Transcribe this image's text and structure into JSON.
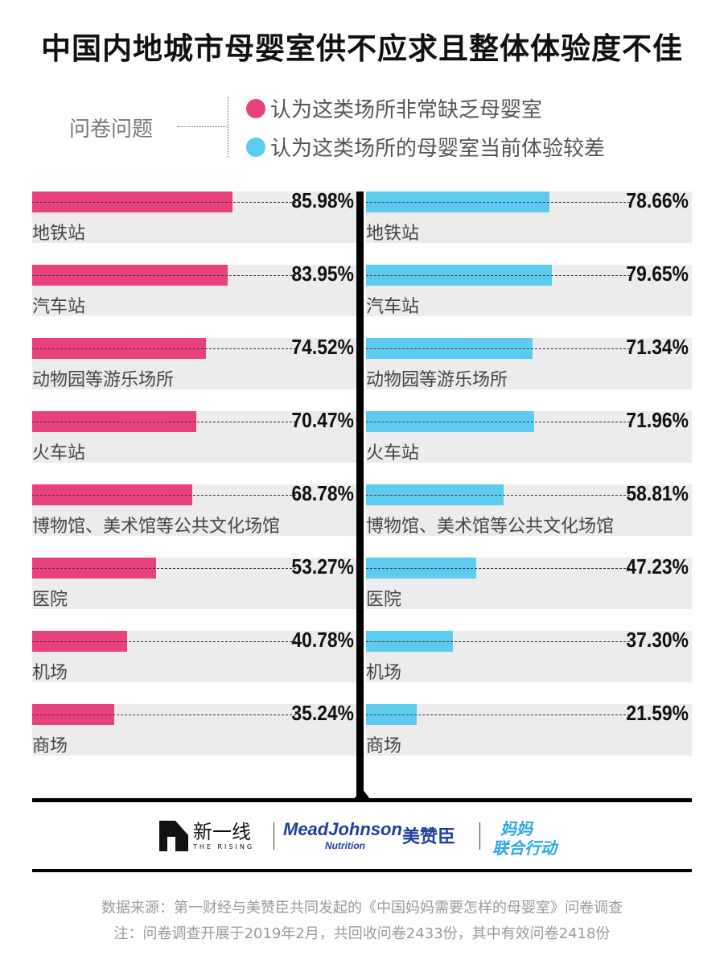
{
  "title": "中国内地城市母婴室供不应求且整体体验度不佳",
  "legend": {
    "label": "问卷问题",
    "items": [
      {
        "name": "认为这类场所非常缺乏母婴室",
        "color": "#e8417e"
      },
      {
        "name": "认为这类场所的母婴室当前体验较差",
        "color": "#5ccbed"
      }
    ]
  },
  "chart_data": {
    "type": "bar",
    "categories": [
      "地铁站",
      "汽车站",
      "动物园等游乐场所",
      "火车站",
      "博物馆、美术馆等公共文化场馆",
      "医院",
      "机场",
      "商场"
    ],
    "series": [
      {
        "name": "认为这类场所非常缺乏母婴室",
        "color": "#e8417e",
        "values": [
          85.98,
          83.95,
          74.52,
          70.47,
          68.78,
          53.27,
          40.78,
          35.24
        ],
        "labels": [
          "85.98%",
          "83.95%",
          "74.52%",
          "70.47%",
          "68.78%",
          "53.27%",
          "40.78%",
          "35.24%"
        ]
      },
      {
        "name": "认为这类场所的母婴室当前体验较差",
        "color": "#5ccbed",
        "values": [
          78.66,
          79.65,
          71.34,
          71.96,
          58.81,
          47.23,
          37.3,
          21.59
        ],
        "labels": [
          "78.66%",
          "79.65%",
          "71.34%",
          "71.96%",
          "58.81%",
          "47.23%",
          "37.30%",
          "21.59%"
        ]
      }
    ],
    "xlim": [
      0,
      100
    ],
    "grid": false,
    "legend_position": "top"
  },
  "logos": {
    "xinyixian_name": "新一线",
    "xinyixian_sub": "THE RISING",
    "meadjohnson_name": "MeadJohnson",
    "meadjohnson_sub": "Nutrition",
    "meadjohnson_cn": "美赞臣",
    "mama_line1": "妈妈",
    "mama_line2": "联合行动"
  },
  "notes": {
    "source": "数据来源：第一财经与美赞臣共同发起的《中国妈妈需要怎样的母婴室》问卷调查",
    "note": "注：问卷调查开展于2019年2月，共回收问卷2433份，其中有效问卷2418份"
  }
}
